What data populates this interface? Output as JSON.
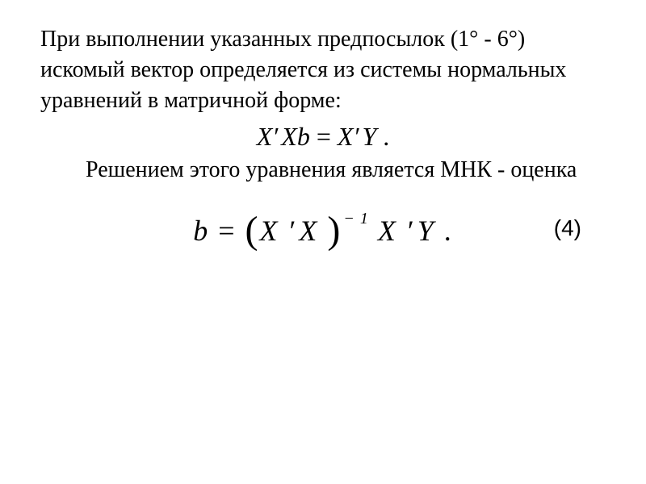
{
  "text": {
    "paragraph1": "При выполнении указанных предпосылок (1° - 6°) искомый вектор  определяется из системы нормальных уравнений в матри­чной форме:",
    "paragraph2": "Решением этого уравнения является МНК - оценка"
  },
  "equations": {
    "normal_eq": {
      "X1": "X",
      "prime1": "′",
      "X2": "Xb ",
      "equals": "= ",
      "X3": "X",
      "prime2": "′",
      "Y": "Y",
      "period": " ."
    },
    "solution": {
      "b": "b",
      "equals": " = ",
      "lparen": "(",
      "X1": "X ",
      "prime1": "′",
      "X2": "X ",
      "rparen": ")",
      "exp": "− 1",
      "X3": " X ",
      "prime2": "′",
      "Y": "Y",
      "period": " ."
    },
    "number": "(4)"
  },
  "styling": {
    "body_font_size": 28,
    "equation1_font_size": 32,
    "equation2_font_size": 36,
    "background": "#ffffff",
    "text_color": "#000000"
  }
}
